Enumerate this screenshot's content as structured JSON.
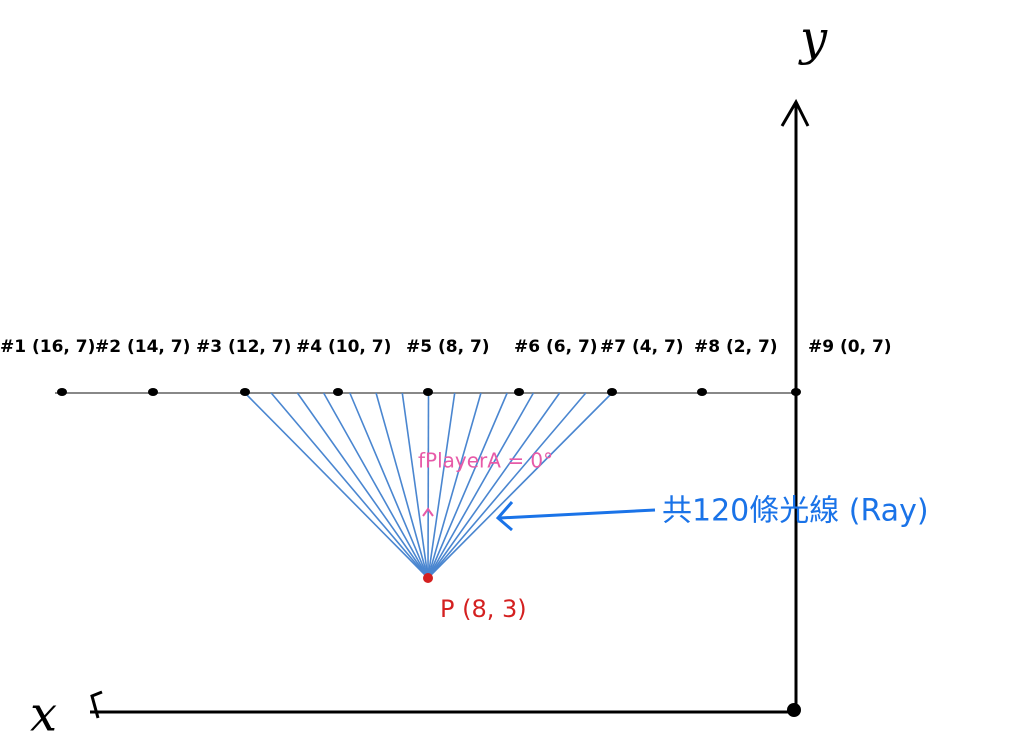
{
  "axes": {
    "x_label": "x",
    "y_label": "y"
  },
  "points": [
    {
      "label": "#1 (16, 7)"
    },
    {
      "label": "#2 (14, 7)"
    },
    {
      "label": "#3 (12, 7)"
    },
    {
      "label": "#4 (10, 7)"
    },
    {
      "label": "#5 (8, 7)"
    },
    {
      "label": "#6 (6, 7)"
    },
    {
      "label": "#7 (4, 7)"
    },
    {
      "label": "#8 (2, 7)"
    },
    {
      "label": "#9 (0, 7)"
    }
  ],
  "player": {
    "label": "P (8, 3)",
    "angle_label": "fPlayerA = 0°"
  },
  "annotation": "共120條光線 (Ray)"
}
